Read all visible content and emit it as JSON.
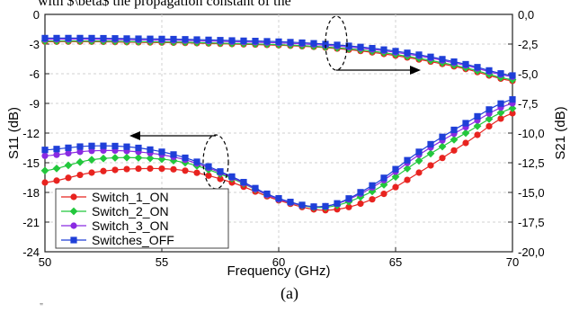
{
  "header_text": "with $\\beta$ the propagation constant of the",
  "caption": "(a)",
  "stray_text": "\"",
  "chart_data": {
    "type": "line",
    "xlabel": "Frequency (GHz)",
    "ylabel_left": "S11 (dB)",
    "ylabel_right": "S21 (dB)",
    "xlim": [
      50,
      70
    ],
    "ylim_left": [
      -24,
      0
    ],
    "ylim_right": [
      -20,
      0
    ],
    "x_ticks": [
      "50",
      "55",
      "60",
      "65",
      "70"
    ],
    "y_ticks_left": [
      "0",
      "-3",
      "-6",
      "-9",
      "-12",
      "-15",
      "-18",
      "-21",
      "-24"
    ],
    "y_ticks_right": [
      "0,0",
      "-2,5",
      "-5,0",
      "-7,5",
      "-10,0",
      "-12,5",
      "-15,0",
      "-17,5",
      "-20,0"
    ],
    "x": [
      50,
      52,
      54,
      56,
      58,
      60,
      62,
      64,
      66,
      68,
      70
    ],
    "legend_position": "bottom-left",
    "series_s11": [
      {
        "name": "Switch_1_ON",
        "color": "#e8231f",
        "marker": "circle",
        "values": [
          -17.0,
          -16.0,
          -15.6,
          -15.8,
          -17.0,
          -18.8,
          -19.8,
          -18.7,
          -16.0,
          -13.0,
          -10.0
        ]
      },
      {
        "name": "Switch_2_ON",
        "color": "#22c73c",
        "marker": "diamond",
        "values": [
          -15.8,
          -14.7,
          -14.5,
          -15.0,
          -16.6,
          -18.7,
          -19.5,
          -17.9,
          -14.8,
          -12.0,
          -9.5
        ]
      },
      {
        "name": "Switch_3_ON",
        "color": "#8a2be2",
        "marker": "circle",
        "values": [
          -14.3,
          -13.8,
          -13.9,
          -14.7,
          -16.5,
          -18.7,
          -19.4,
          -17.5,
          -14.2,
          -11.4,
          -9.0
        ]
      },
      {
        "name": "Switches_OFF",
        "color": "#1f3fd8",
        "marker": "square",
        "values": [
          -13.7,
          -13.3,
          -13.5,
          -14.5,
          -16.4,
          -18.6,
          -19.4,
          -17.3,
          -13.9,
          -11.0,
          -8.6
        ]
      }
    ],
    "series_s21": [
      {
        "name": "Switch_1_ON",
        "color": "#e8231f",
        "marker": "circle",
        "values": [
          -2.3,
          -2.3,
          -2.35,
          -2.4,
          -2.5,
          -2.6,
          -2.8,
          -3.2,
          -3.8,
          -4.6,
          -5.6
        ]
      },
      {
        "name": "Switch_2_ON",
        "color": "#22c73c",
        "marker": "diamond",
        "values": [
          -2.25,
          -2.25,
          -2.3,
          -2.35,
          -2.45,
          -2.55,
          -2.75,
          -3.1,
          -3.7,
          -4.5,
          -5.5
        ]
      },
      {
        "name": "Switch_3_ON",
        "color": "#8a2be2",
        "marker": "circle",
        "values": [
          -2.1,
          -2.1,
          -2.15,
          -2.2,
          -2.3,
          -2.4,
          -2.6,
          -2.95,
          -3.5,
          -4.3,
          -5.25
        ]
      },
      {
        "name": "Switches_OFF",
        "color": "#1f3fd8",
        "marker": "square",
        "values": [
          -2.0,
          -2.0,
          -2.05,
          -2.1,
          -2.2,
          -2.3,
          -2.5,
          -2.85,
          -3.4,
          -4.2,
          -5.15
        ]
      }
    ]
  }
}
